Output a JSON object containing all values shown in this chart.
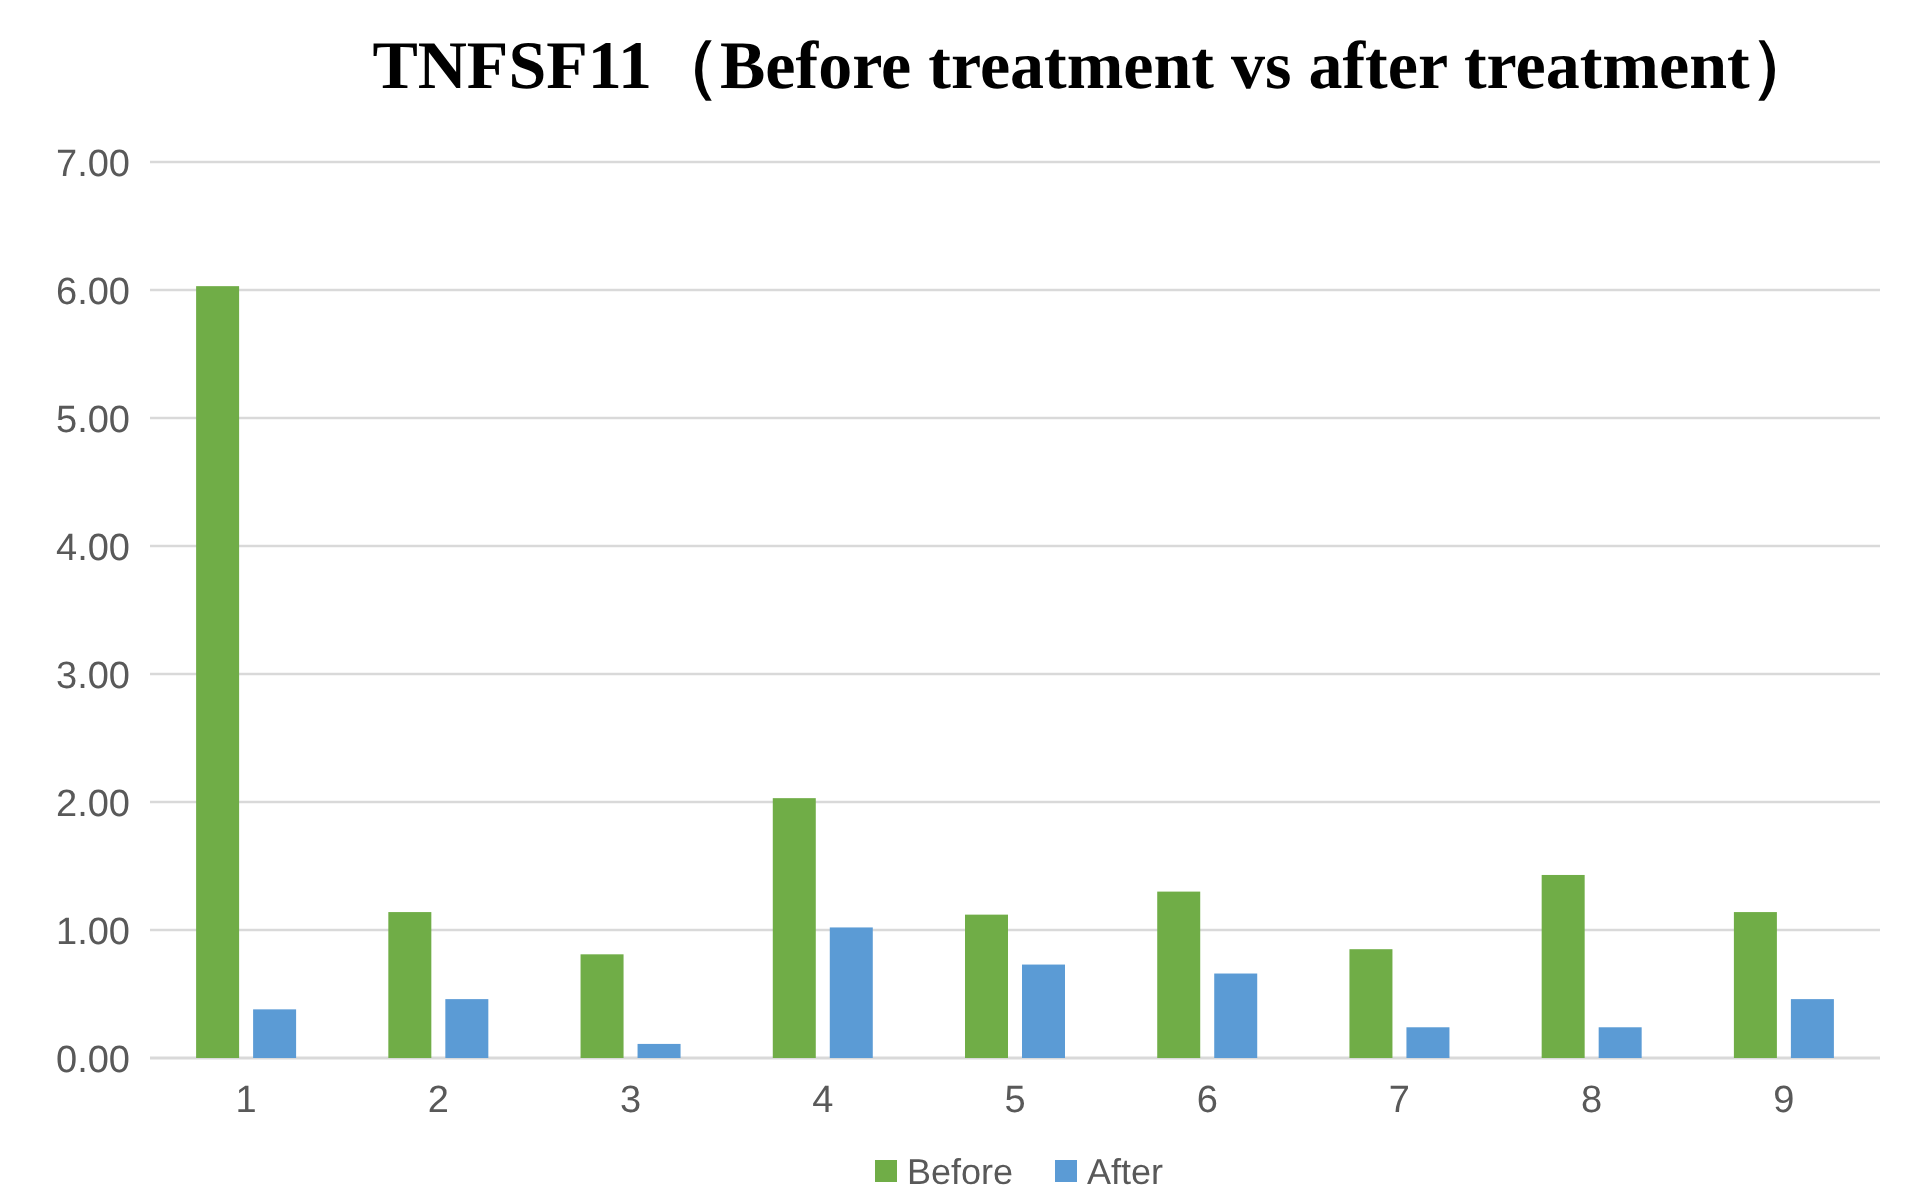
{
  "chart_data": {
    "type": "bar",
    "title": "TNFSF11（Before treatment vs after treatment）",
    "categories": [
      "1",
      "2",
      "3",
      "4",
      "5",
      "6",
      "7",
      "8",
      "9"
    ],
    "series": [
      {
        "name": "Before",
        "color": "#70ad47",
        "values": [
          6.03,
          1.14,
          0.81,
          2.03,
          1.12,
          1.3,
          0.85,
          1.43,
          1.14
        ]
      },
      {
        "name": "After",
        "color": "#5b9bd5",
        "values": [
          0.38,
          0.46,
          0.11,
          1.02,
          0.73,
          0.66,
          0.24,
          0.24,
          0.46
        ]
      }
    ],
    "ylim": [
      0,
      7
    ],
    "yticks": [
      {
        "value": 0,
        "label": "0.00"
      },
      {
        "value": 1,
        "label": "1.00"
      },
      {
        "value": 2,
        "label": "2.00"
      },
      {
        "value": 3,
        "label": "3.00"
      },
      {
        "value": 4,
        "label": "4.00"
      },
      {
        "value": 5,
        "label": "5.00"
      },
      {
        "value": 6,
        "label": "6.00"
      },
      {
        "value": 7,
        "label": "7.00"
      }
    ],
    "grid": "y",
    "legend": "bottom"
  }
}
